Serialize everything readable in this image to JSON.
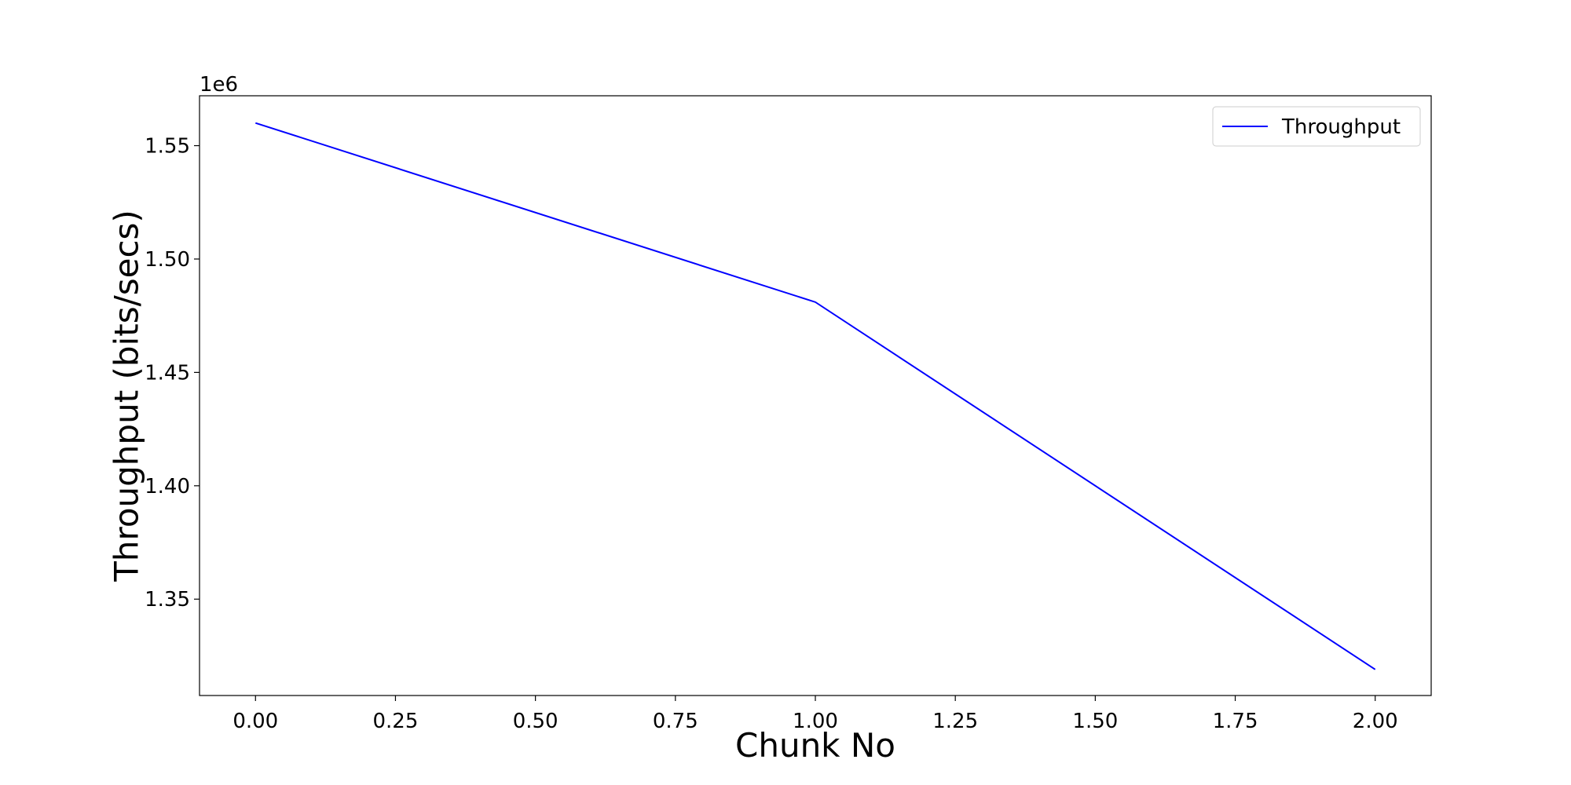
{
  "chart_data": {
    "type": "line",
    "title": "",
    "xlabel": "Chunk No",
    "ylabel": "Throughput (bits/secs)",
    "y_offset_label": "1e6",
    "y_scale": 1000000,
    "xlim": [
      -0.1,
      2.1
    ],
    "ylim": [
      1.3075,
      1.572
    ],
    "x_ticks": [
      0.0,
      0.25,
      0.5,
      0.75,
      1.0,
      1.25,
      1.5,
      1.75,
      2.0
    ],
    "x_tick_labels": [
      "0.00",
      "0.25",
      "0.50",
      "0.75",
      "1.00",
      "1.25",
      "1.50",
      "1.75",
      "2.00"
    ],
    "y_ticks": [
      1.35,
      1.4,
      1.45,
      1.5,
      1.55
    ],
    "y_tick_labels": [
      "1.35",
      "1.40",
      "1.45",
      "1.50",
      "1.55"
    ],
    "grid": false,
    "legend_position": "top-right",
    "series": [
      {
        "name": "Throughput",
        "color": "#0000ff",
        "x": [
          0,
          1,
          2
        ],
        "y": [
          1.56,
          1.481,
          1.319
        ]
      }
    ]
  }
}
